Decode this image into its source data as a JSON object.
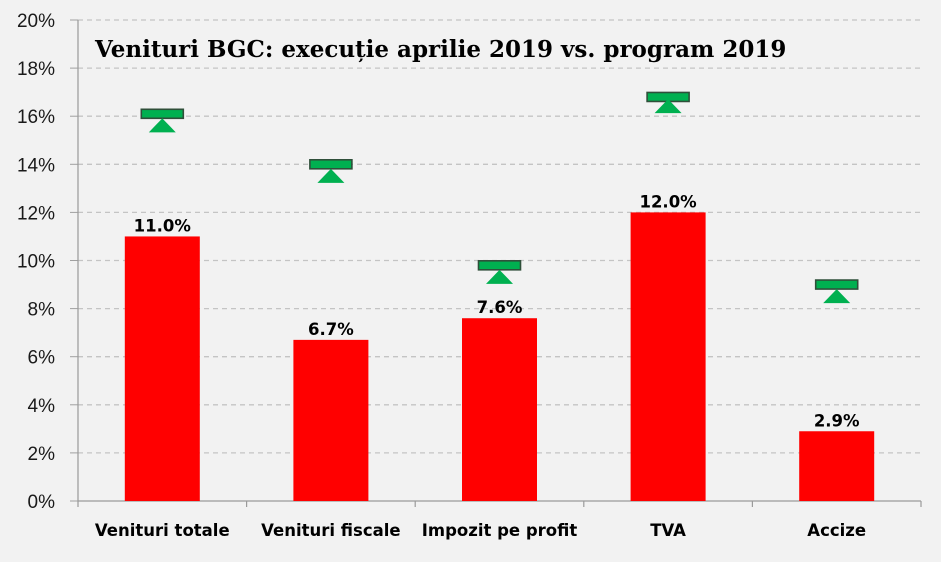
{
  "chart_data": {
    "type": "bar",
    "title": "Venituri BGC: execuție aprilie 2019 vs. program 2019",
    "xlabel": "",
    "ylabel": "",
    "ylim": [
      0,
      20
    ],
    "y_ticks": [
      "0%",
      "2%",
      "4%",
      "6%",
      "8%",
      "10%",
      "12%",
      "14%",
      "16%",
      "18%",
      "20%"
    ],
    "grid": true,
    "legend": "none",
    "categories": [
      "Venituri totale",
      "Venituri fiscale",
      "Impozit pe profit",
      "TVA",
      "Accize"
    ],
    "series": [
      {
        "name": "Execuție aprilie 2019",
        "kind": "bar",
        "color": "#ff0000",
        "values": [
          11.0,
          6.7,
          7.6,
          12.0,
          2.9
        ],
        "labels": [
          "11.0%",
          "6.7%",
          "7.6%",
          "12.0%",
          "2.9%"
        ]
      },
      {
        "name": "Program 2019 (dash marker)",
        "kind": "marker-dash",
        "color": "#00b050",
        "values": [
          16.1,
          14.0,
          9.8,
          16.8,
          9.0
        ]
      },
      {
        "name": "Program 2019 (triangle marker)",
        "kind": "marker-triangle",
        "color": "#00b050",
        "values": [
          15.6,
          13.5,
          9.3,
          16.4,
          8.5
        ]
      }
    ]
  }
}
